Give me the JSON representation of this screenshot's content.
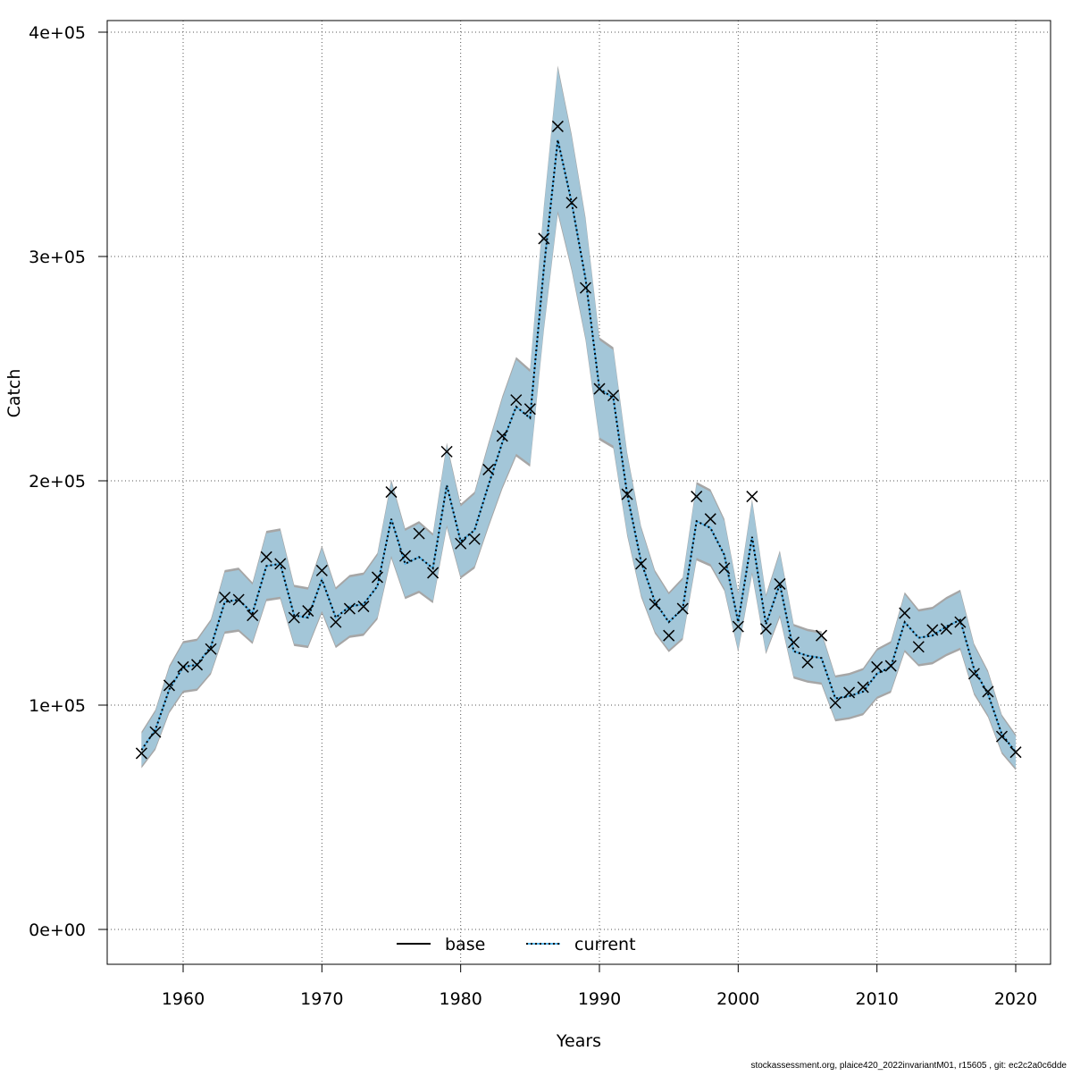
{
  "chart_data": {
    "type": "line",
    "title": "",
    "xlabel": "Years",
    "ylabel": "Catch",
    "xlim": [
      1955,
      2023
    ],
    "ylim": [
      -15000,
      405000
    ],
    "grid": true,
    "x_ticks": [
      1960,
      1970,
      1980,
      1990,
      2000,
      2010,
      2020
    ],
    "x_tick_labels": [
      "1960",
      "1970",
      "1980",
      "1990",
      "2000",
      "2010",
      "2020"
    ],
    "y_ticks": [
      0,
      100000,
      200000,
      300000,
      400000
    ],
    "y_tick_labels": [
      "0e+00",
      "1e+05",
      "2e+05",
      "3e+05",
      "4e+05"
    ],
    "legend": {
      "placement": "bottom-center",
      "entries": [
        {
          "label": "base",
          "style": "solid",
          "color": "#000000"
        },
        {
          "label": "current",
          "style": "dotted",
          "color": "#0072B2"
        }
      ]
    },
    "colors": {
      "current_band": "#a3c6d8",
      "base_band": "#a6a6a6",
      "current_line": "#56b4e9"
    },
    "ci_relative_halfwidth": 0.09,
    "x": [
      1957,
      1958,
      1959,
      1960,
      1961,
      1962,
      1963,
      1964,
      1965,
      1966,
      1967,
      1968,
      1969,
      1970,
      1971,
      1972,
      1973,
      1974,
      1975,
      1976,
      1977,
      1978,
      1979,
      1980,
      1981,
      1982,
      1983,
      1984,
      1985,
      1986,
      1987,
      1988,
      1989,
      1990,
      1991,
      1992,
      1993,
      1994,
      1995,
      1996,
      1997,
      1998,
      1999,
      2000,
      2001,
      2002,
      2003,
      2004,
      2005,
      2006,
      2007,
      2008,
      2009,
      2010,
      2011,
      2012,
      2013,
      2014,
      2015,
      2016,
      2017,
      2018,
      2019,
      2020
    ],
    "series": [
      {
        "name": "current",
        "values": [
          80000,
          89000,
          107000,
          117000,
          118000,
          126000,
          146000,
          147000,
          141000,
          162000,
          163000,
          140000,
          139000,
          156000,
          139000,
          144000,
          145000,
          153000,
          183000,
          163000,
          166000,
          161000,
          198000,
          173000,
          178000,
          198000,
          217000,
          233000,
          228000,
          295000,
          352000,
          324000,
          290000,
          241000,
          237000,
          194000,
          164000,
          146000,
          137000,
          143000,
          182000,
          179000,
          167000,
          137000,
          175000,
          136000,
          154000,
          124000,
          122000,
          121000,
          103000,
          104000,
          106000,
          114000,
          117000,
          137000,
          130000,
          131000,
          135000,
          138000,
          116000,
          105000,
          87000,
          79000
        ]
      },
      {
        "name": "observed",
        "values": [
          78500,
          88000,
          108800,
          117000,
          118000,
          125000,
          148000,
          147000,
          140000,
          166000,
          163000,
          139000,
          142000,
          160000,
          137000,
          143000,
          144000,
          157000,
          195000,
          166500,
          176500,
          159000,
          213000,
          172000,
          174000,
          205000,
          220000,
          236000,
          232000,
          308000,
          358000,
          324000,
          286000,
          241000,
          238000,
          194000,
          163000,
          145000,
          131000,
          143000,
          193000,
          183000,
          161000,
          135000,
          193000,
          134000,
          154000,
          128000,
          119000,
          131000,
          101000,
          105600,
          108000,
          117000,
          117500,
          141000,
          126000,
          133500,
          134000,
          137000,
          114000,
          106000,
          86000,
          79000
        ]
      }
    ]
  },
  "footer": "stockassessment.org, plaice420_2022invariantM01, r15605 , git: ec2c2a0c6dde"
}
